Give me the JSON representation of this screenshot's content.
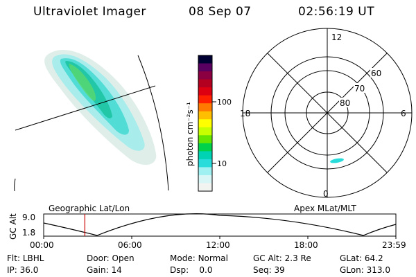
{
  "header": {
    "instrument": "Ultraviolet Imager",
    "date": "08 Sep 07",
    "time": "02:56:19 UT"
  },
  "colorbar": {
    "unit_label": "photon cm⁻²s⁻¹",
    "tick_labels": [
      "100",
      "10"
    ],
    "colors": [
      "#000033",
      "#5a0060",
      "#8b0040",
      "#b40020",
      "#dc0010",
      "#ff2000",
      "#ff7a00",
      "#ffbf00",
      "#ffff00",
      "#c8ff00",
      "#64e600",
      "#00d24a",
      "#00d2b4",
      "#28dcdc",
      "#9ff0f0",
      "#d8f6f6",
      "#f2f4f2"
    ]
  },
  "polar": {
    "mlt_labels": {
      "top": "12",
      "bottom": "0",
      "left": "18",
      "right": "6"
    },
    "lat_labels": [
      "60",
      "70",
      "80"
    ]
  },
  "altitude_plot": {
    "y_axis_label": "GC Alt",
    "y_ticks": [
      "9.0",
      "1.8"
    ],
    "left_label": "Geographic Lat/Lon",
    "right_label": "Apex MLat/MLT",
    "x_ticks": [
      "00:00",
      "06:00",
      "12:00",
      "18:00",
      "23:59"
    ],
    "current_time_fraction": 0.117,
    "marker_color": "#cc0000"
  },
  "info": {
    "row1": [
      {
        "label": "Flt:",
        "value": "LBHL"
      },
      {
        "label": "Door:",
        "value": "Open"
      },
      {
        "label": "Mode:",
        "value": "Normal"
      },
      {
        "label": "GC Alt:",
        "value": "2.3 Re"
      },
      {
        "label": "GLat:",
        "value": "64.2"
      }
    ],
    "row2": [
      {
        "label": "IP:",
        "value": "36.0"
      },
      {
        "label": "Gain:",
        "value": "14"
      },
      {
        "label": "Dsp:",
        "value": "0.0"
      },
      {
        "label": "Seq:",
        "value": "39"
      },
      {
        "label": "GLon:",
        "value": "313.0"
      }
    ]
  }
}
